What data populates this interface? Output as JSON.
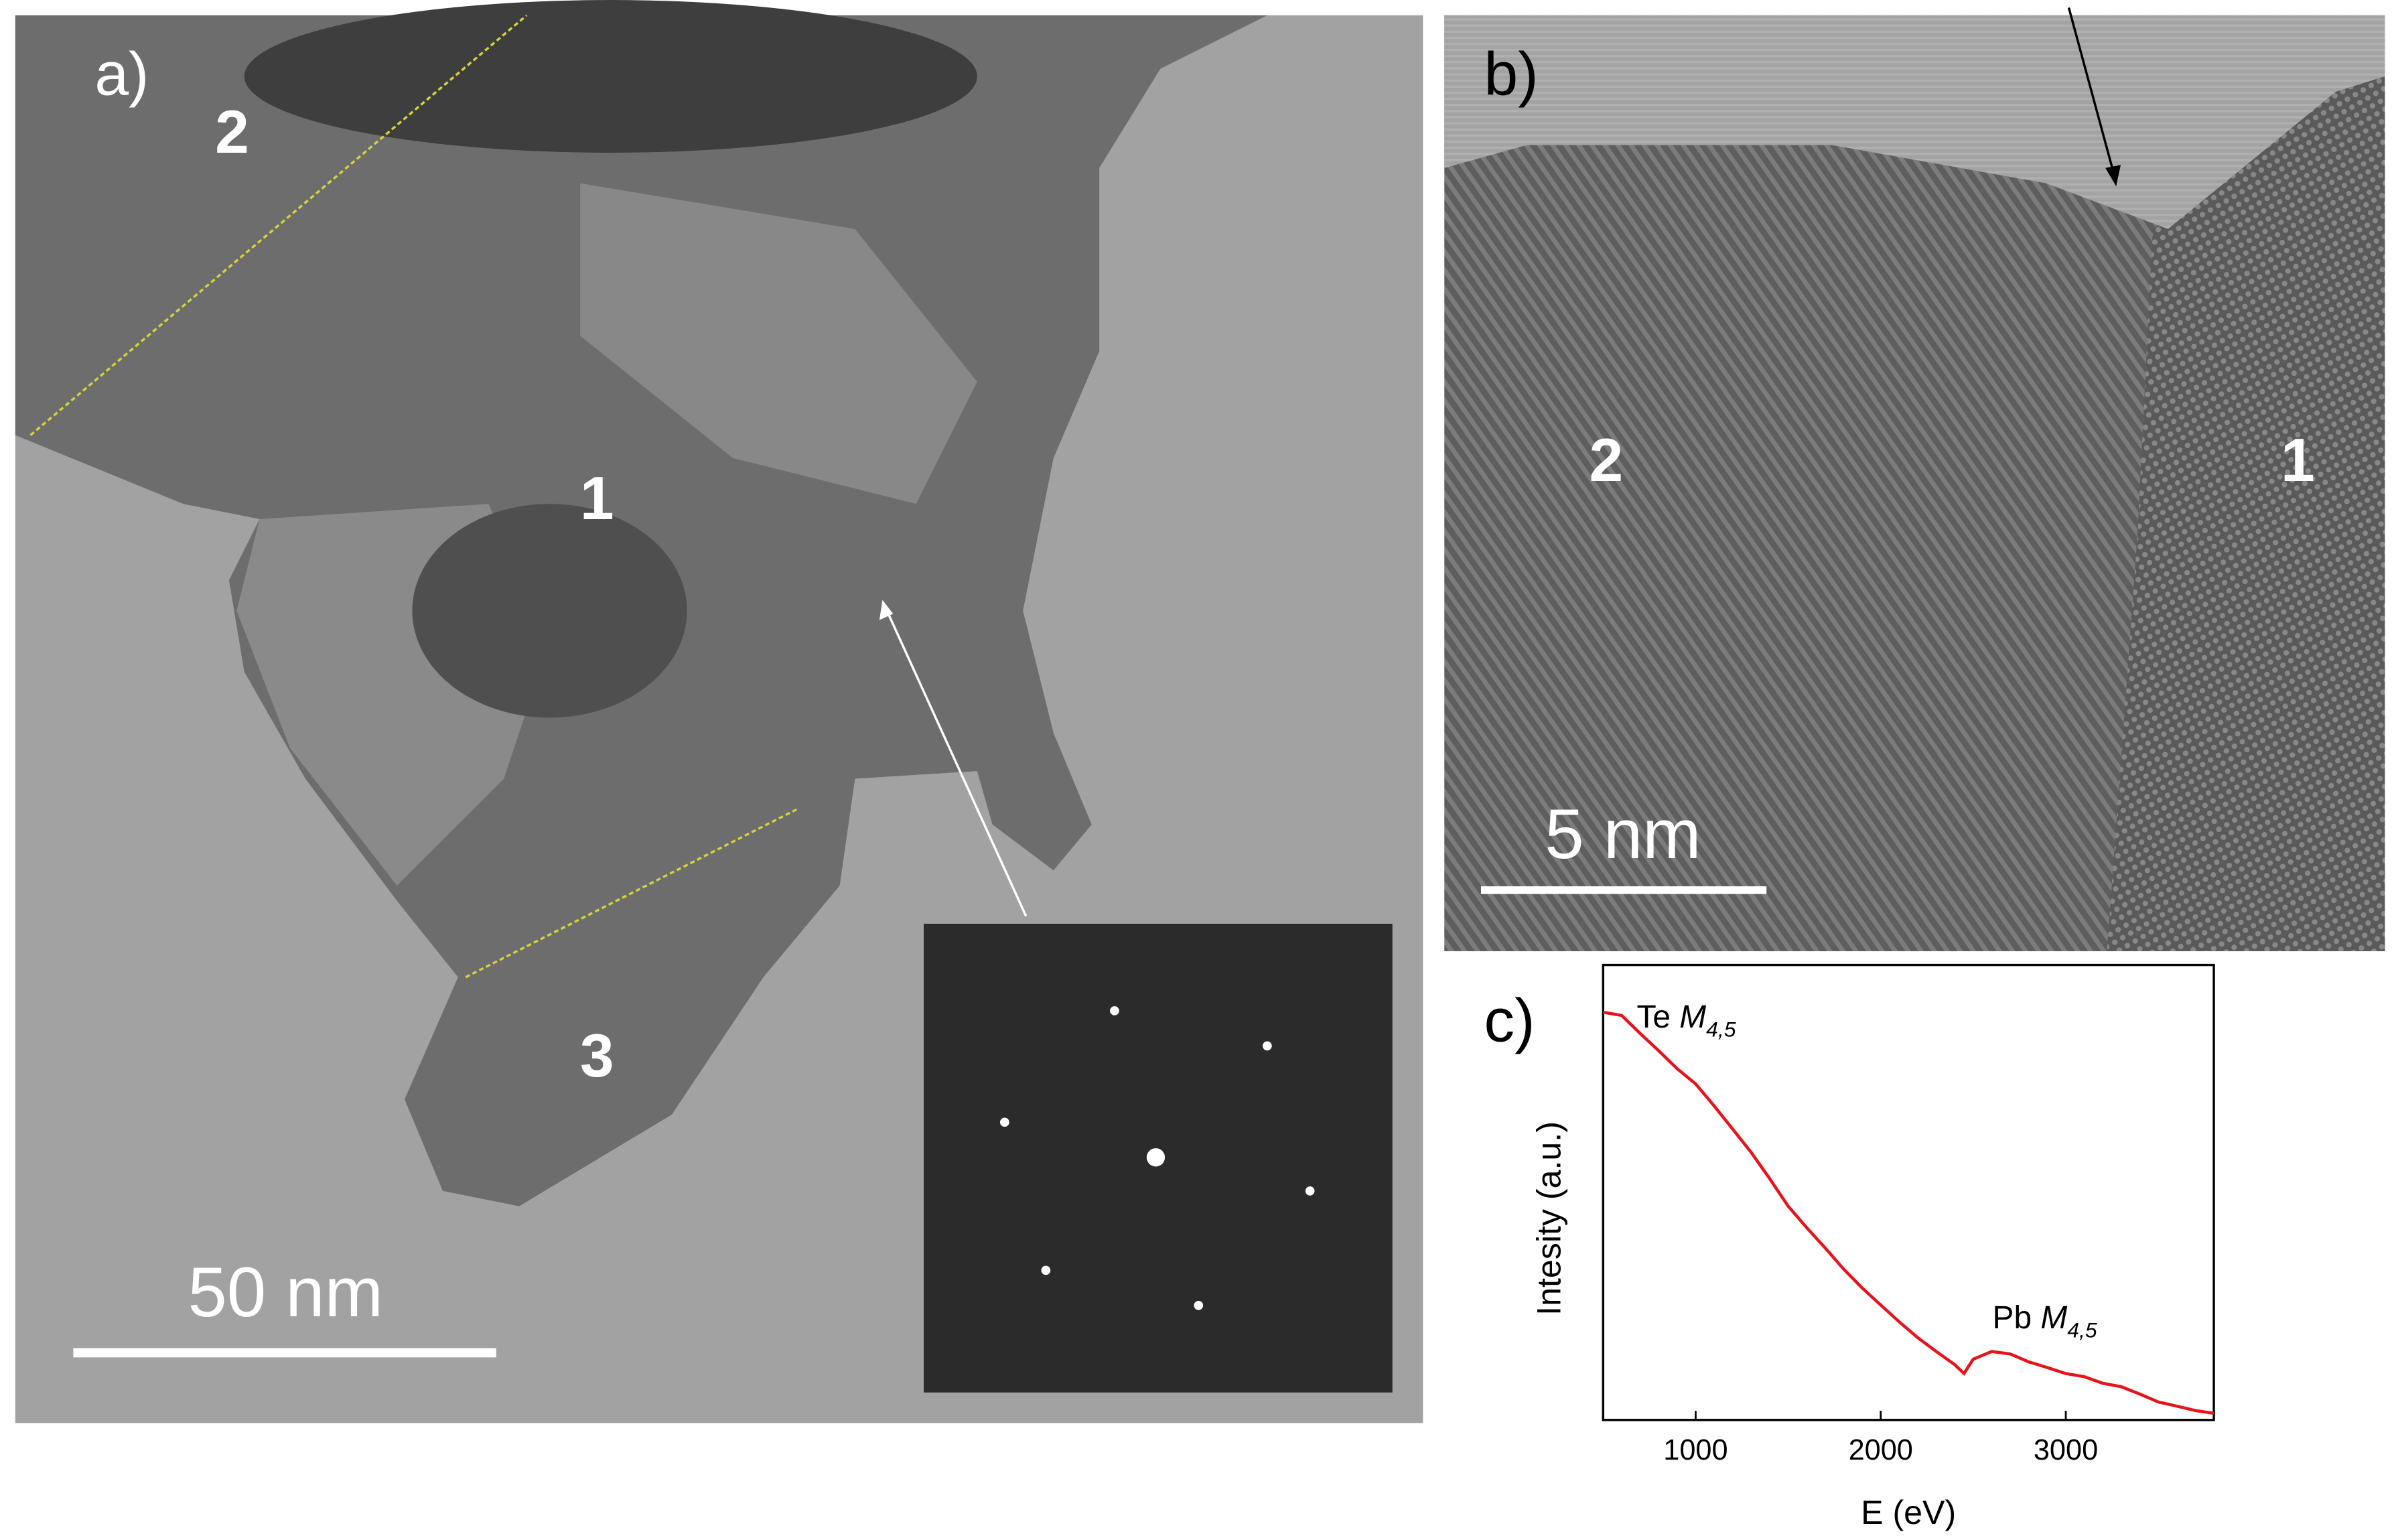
{
  "panel_a": {
    "label": "a)",
    "regions": [
      "2",
      "1",
      "3"
    ],
    "scale_bar": "50 nm"
  },
  "panel_b": {
    "label": "b)",
    "regions": [
      "2",
      "1"
    ],
    "scale_bar": "5 nm"
  },
  "chart_data": {
    "type": "line",
    "panel_label": "c)",
    "x_label": "E (eV)",
    "y_label": "Intesity (a.u.)",
    "annotations": [
      {
        "text": "Te",
        "symbol": "M",
        "subscript": "4,5"
      },
      {
        "text": "Pb",
        "symbol": "M",
        "subscript": "4,5"
      }
    ],
    "x": [
      500,
      600,
      700,
      800,
      900,
      1000,
      1100,
      1200,
      1300,
      1400,
      1500,
      1600,
      1700,
      1800,
      1900,
      2000,
      2100,
      2200,
      2300,
      2400,
      2450,
      2500,
      2600,
      2700,
      2800,
      2900,
      3000,
      3100,
      3200,
      3300,
      3400,
      3500,
      3600,
      3700,
      3800
    ],
    "series": [
      {
        "color": "#e8141c",
        "values": [
          62,
          60,
          50,
          42,
          35,
          30,
          24,
          19,
          15,
          11.5,
          8.7,
          7.0,
          5.7,
          4.6,
          3.8,
          3.2,
          2.7,
          2.3,
          2.0,
          1.75,
          1.6,
          1.85,
          2.0,
          1.95,
          1.8,
          1.7,
          1.6,
          1.55,
          1.45,
          1.4,
          1.3,
          1.2,
          1.15,
          1.1,
          1.07
        ]
      }
    ],
    "xlim": [
      500,
      3800
    ],
    "xticks": [
      1000,
      2000,
      3000
    ],
    "ylim": [
      1,
      100
    ],
    "log_y": true
  }
}
